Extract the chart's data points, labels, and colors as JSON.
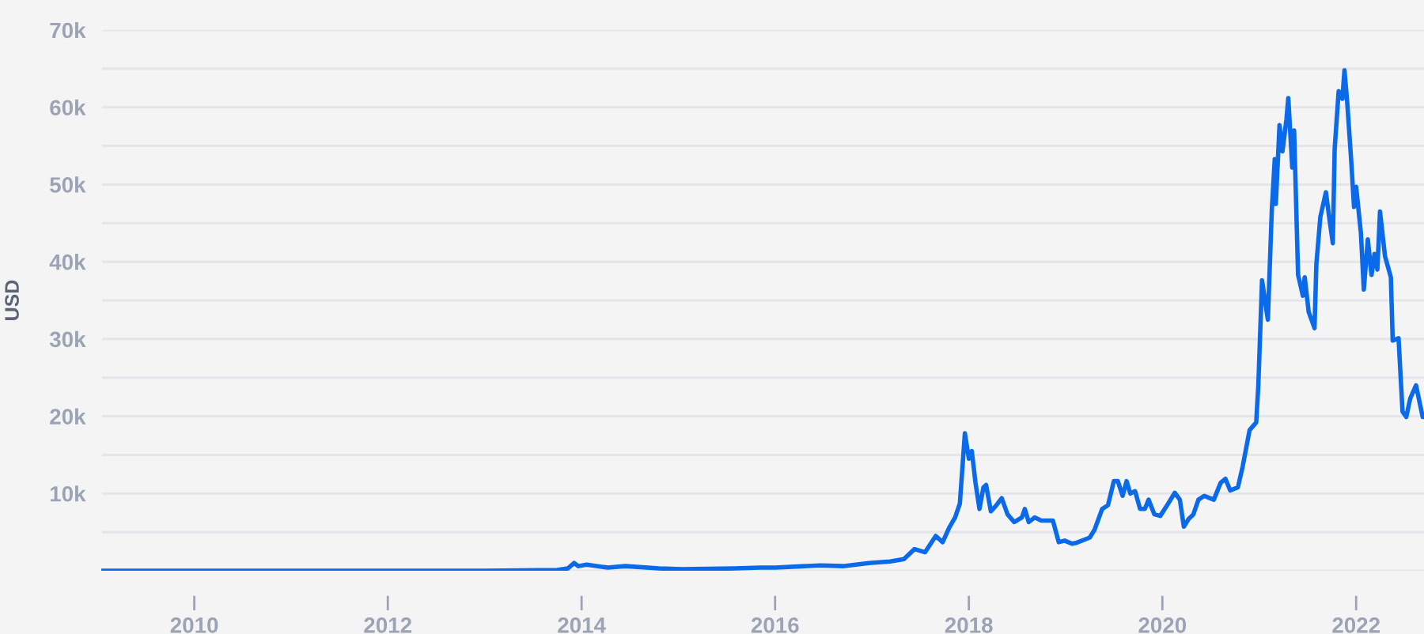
{
  "chart_data": {
    "type": "line",
    "ylabel": "USD",
    "color": "#0b6ae9",
    "line_style": "solid",
    "grid": "y",
    "xlim": [
      "2009-01-15",
      "2022-09-14"
    ],
    "xticks": [
      "2010",
      "2012",
      "2014",
      "2016",
      "2018",
      "2020",
      "2022"
    ],
    "ylim": [
      0,
      70000
    ],
    "yticks": [
      {
        "value": 0,
        "label": null
      },
      {
        "value": 5000,
        "label": null
      },
      {
        "value": 10000,
        "label": "10k"
      },
      {
        "value": 15000,
        "label": null
      },
      {
        "value": 20000,
        "label": "20k"
      },
      {
        "value": 25000,
        "label": null
      },
      {
        "value": 30000,
        "label": "30k"
      },
      {
        "value": 35000,
        "label": null
      },
      {
        "value": 40000,
        "label": "40k"
      },
      {
        "value": 45000,
        "label": null
      },
      {
        "value": 50000,
        "label": "50k"
      },
      {
        "value": 55000,
        "label": null
      },
      {
        "value": 60000,
        "label": "60k"
      },
      {
        "value": 65000,
        "label": null
      },
      {
        "value": 70000,
        "label": "70k"
      }
    ],
    "x": [
      "2009-01-15",
      "2011-01-01",
      "2013-01-01",
      "2013-10-01",
      "2013-11-10",
      "2013-12-04",
      "2013-12-20",
      "2014-01-20",
      "2014-04-10",
      "2014-06-15",
      "2014-10-20",
      "2015-01-15",
      "2015-08-01",
      "2015-11-05",
      "2016-01-01",
      "2016-06-20",
      "2016-09-13",
      "2016-12-20",
      "2017-03-10",
      "2017-05-01",
      "2017-06-10",
      "2017-07-20",
      "2017-08-29",
      "2017-09-24",
      "2017-10-19",
      "2017-11-10",
      "2017-11-28",
      "2017-12-17",
      "2018-01-01",
      "2018-01-12",
      "2018-01-26",
      "2018-02-10",
      "2018-02-25",
      "2018-03-07",
      "2018-03-25",
      "2018-04-13",
      "2018-05-05",
      "2018-05-27",
      "2018-06-21",
      "2018-07-20",
      "2018-07-31",
      "2018-08-15",
      "2018-09-06",
      "2018-10-01",
      "2018-11-14",
      "2018-12-06",
      "2018-12-28",
      "2019-01-26",
      "2019-02-09",
      "2019-04-02",
      "2019-04-20",
      "2019-05-19",
      "2019-06-10",
      "2019-07-02",
      "2019-07-17",
      "2019-08-04",
      "2019-08-19",
      "2019-09-02",
      "2019-09-20",
      "2019-10-09",
      "2019-10-27",
      "2019-11-10",
      "2019-12-02",
      "2019-12-24",
      "2020-01-23",
      "2020-02-17",
      "2020-03-07",
      "2020-03-22",
      "2020-04-09",
      "2020-04-27",
      "2020-05-16",
      "2020-06-07",
      "2020-07-13",
      "2020-08-08",
      "2020-08-26",
      "2020-09-13",
      "2020-10-12",
      "2020-10-30",
      "2020-11-25",
      "2020-12-20",
      "2020-12-28",
      "2021-01-11",
      "2021-02-02",
      "2021-02-17",
      "2021-02-28",
      "2021-03-04",
      "2021-03-18",
      "2021-03-29",
      "2021-04-13",
      "2021-04-20",
      "2021-05-05",
      "2021-05-12",
      "2021-05-27",
      "2021-06-14",
      "2021-06-21",
      "2021-07-06",
      "2021-07-28",
      "2021-08-04",
      "2021-08-19",
      "2021-09-09",
      "2021-09-20",
      "2021-10-05",
      "2021-10-12",
      "2021-10-27",
      "2021-11-10",
      "2021-11-18",
      "2021-11-28",
      "2021-12-13",
      "2021-12-24",
      "2022-01-01",
      "2022-01-19",
      "2022-01-30",
      "2022-02-14",
      "2022-02-28",
      "2022-03-11",
      "2022-03-22",
      "2022-04-01",
      "2022-04-20",
      "2022-05-12",
      "2022-05-19",
      "2022-06-10",
      "2022-06-25",
      "2022-07-09",
      "2022-07-24",
      "2022-08-15",
      "2022-09-09"
    ],
    "values": [
      0,
      0,
      0,
      100,
      300,
      1000,
      600,
      800,
      400,
      600,
      300,
      200,
      300,
      400,
      400,
      700,
      600,
      1000,
      1200,
      1500,
      2800,
      2400,
      4500,
      3700,
      5600,
      6900,
      8700,
      17800,
      14500,
      15500,
      11400,
      8000,
      10800,
      11100,
      7700,
      8400,
      9400,
      7300,
      6300,
      6900,
      8000,
      6300,
      6900,
      6500,
      6500,
      3700,
      3900,
      3500,
      3600,
      4300,
      5300,
      8000,
      8500,
      11600,
      11600,
      9700,
      11600,
      10000,
      10300,
      8000,
      8000,
      9200,
      7300,
      7100,
      8700,
      10100,
      9200,
      5700,
      6700,
      7300,
      9200,
      9700,
      9200,
      11400,
      11900,
      10400,
      10800,
      13500,
      18200,
      19200,
      24000,
      37600,
      32500,
      46800,
      53300,
      47500,
      57700,
      54300,
      58400,
      61200,
      52200,
      57000,
      38300,
      35600,
      38000,
      33500,
      31400,
      39700,
      45800,
      49000,
      46100,
      42400,
      54600,
      62100,
      61100,
      64800,
      60800,
      53300,
      47100,
      49700,
      43700,
      36400,
      42900,
      38300,
      41000,
      39000,
      46500,
      40700,
      38000,
      29800,
      30100,
      20600,
      19900,
      22300,
      24000,
      19900
    ]
  }
}
